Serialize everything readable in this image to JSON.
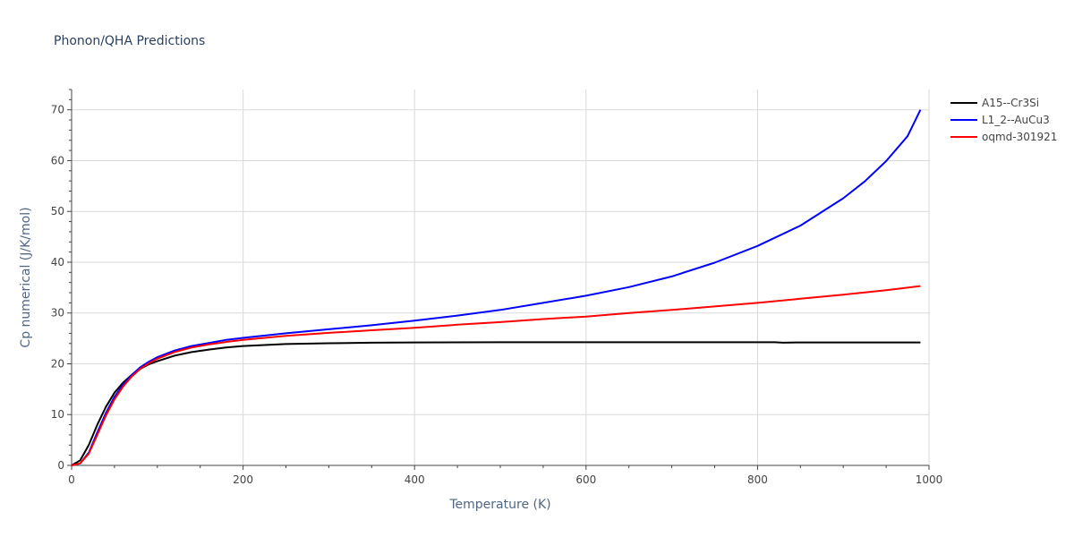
{
  "chart_data": {
    "type": "line",
    "title": "Phonon/QHA Predictions",
    "xlabel": "Temperature (K)",
    "ylabel": "Cp numerical (J/K/mol)",
    "xlim": [
      0,
      1000
    ],
    "ylim": [
      0,
      74
    ],
    "x_ticks": [
      0,
      200,
      400,
      600,
      800,
      1000
    ],
    "y_ticks": [
      0,
      10,
      20,
      30,
      40,
      50,
      60,
      70
    ],
    "grid": true,
    "legend_position": "top-right",
    "series": [
      {
        "name": "A15--Cr3Si",
        "color": "#000000",
        "x": [
          0,
          10,
          20,
          30,
          40,
          50,
          60,
          70,
          80,
          90,
          100,
          120,
          140,
          160,
          180,
          200,
          250,
          300,
          350,
          400,
          500,
          600,
          700,
          800,
          820,
          830,
          850,
          900,
          950,
          990
        ],
        "y": [
          0,
          1.0,
          4.0,
          8.0,
          11.5,
          14.3,
          16.3,
          17.8,
          19.0,
          19.9,
          20.5,
          21.6,
          22.3,
          22.8,
          23.2,
          23.5,
          23.9,
          24.05,
          24.15,
          24.2,
          24.25,
          24.25,
          24.25,
          24.25,
          24.25,
          24.15,
          24.2,
          24.2,
          24.2,
          24.2
        ]
      },
      {
        "name": "L1_2--AuCu3",
        "color": "#0000ff",
        "x": [
          0,
          10,
          20,
          30,
          40,
          50,
          60,
          70,
          80,
          90,
          100,
          120,
          140,
          160,
          180,
          200,
          250,
          300,
          350,
          400,
          450,
          500,
          550,
          600,
          650,
          700,
          750,
          800,
          850,
          900,
          925,
          950,
          975,
          990
        ],
        "y": [
          0,
          0.4,
          2.5,
          6.5,
          10.3,
          13.5,
          15.9,
          17.8,
          19.3,
          20.4,
          21.3,
          22.6,
          23.5,
          24.1,
          24.7,
          25.1,
          26.0,
          26.8,
          27.6,
          28.5,
          29.5,
          30.6,
          32.0,
          33.4,
          35.1,
          37.2,
          39.9,
          43.2,
          47.2,
          52.6,
          55.9,
          59.9,
          64.8,
          70.0
        ]
      },
      {
        "name": "oqmd-301921",
        "color": "#ff0000",
        "x": [
          0,
          10,
          20,
          30,
          40,
          50,
          60,
          70,
          80,
          90,
          100,
          120,
          140,
          160,
          180,
          200,
          250,
          300,
          350,
          400,
          450,
          500,
          550,
          600,
          650,
          700,
          750,
          800,
          850,
          900,
          950,
          990
        ],
        "y": [
          0,
          0.4,
          2.3,
          6.0,
          9.8,
          13.0,
          15.5,
          17.5,
          19.0,
          20.1,
          21.0,
          22.3,
          23.2,
          23.8,
          24.3,
          24.7,
          25.5,
          26.1,
          26.6,
          27.1,
          27.7,
          28.2,
          28.8,
          29.3,
          30.0,
          30.6,
          31.3,
          32.0,
          32.8,
          33.6,
          34.5,
          35.3
        ]
      }
    ]
  }
}
